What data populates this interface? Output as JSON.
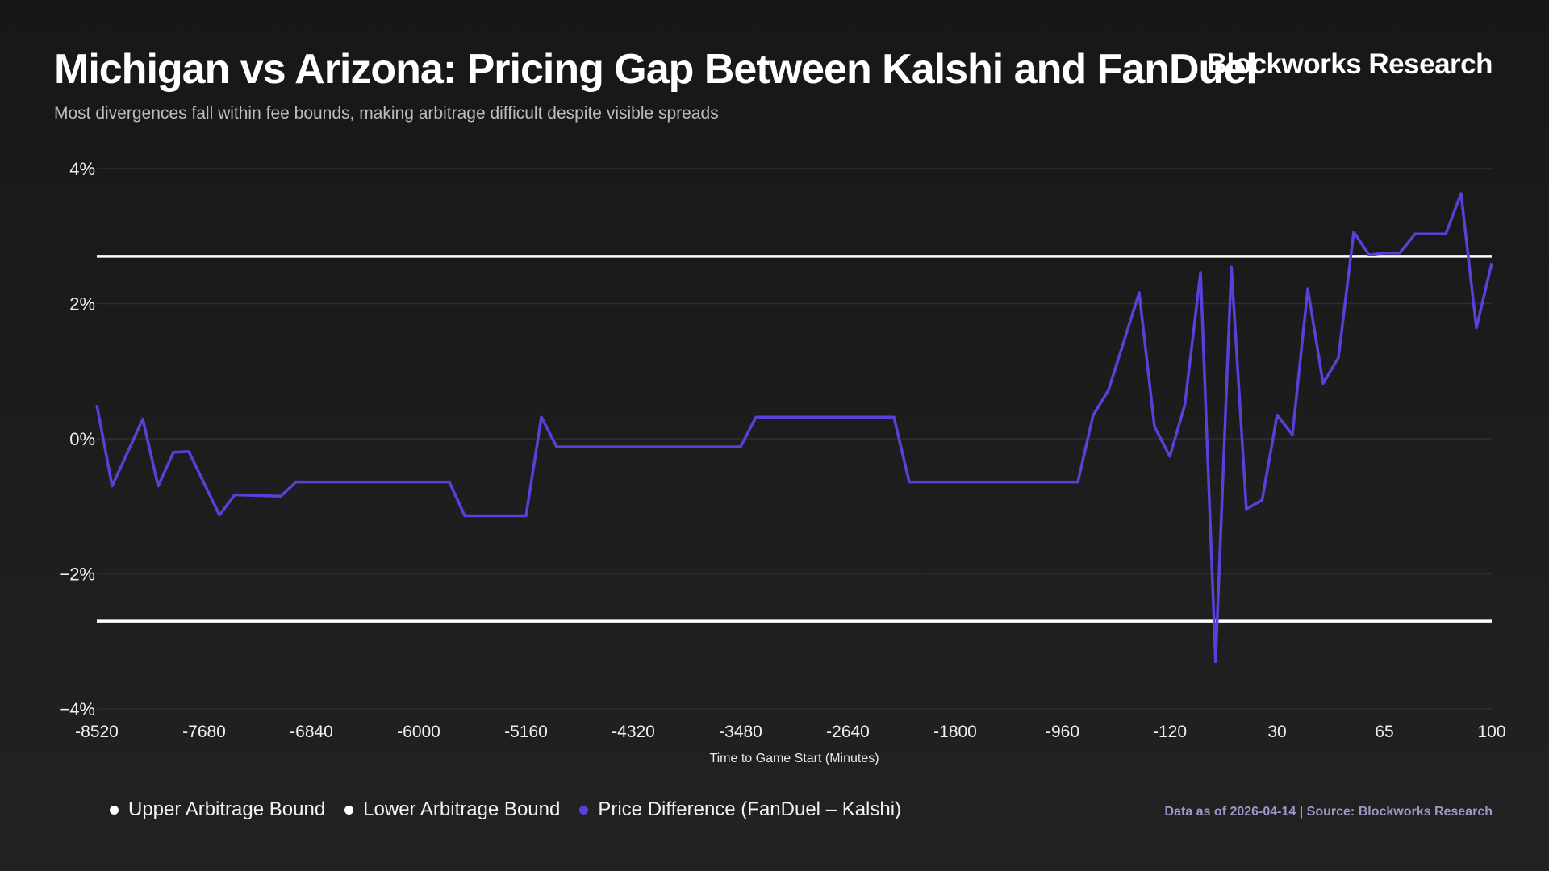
{
  "header": {
    "title": "Michigan vs Arizona: Pricing Gap Between Kalshi and FanDuel",
    "subtitle": "Most divergences fall within fee bounds, making arbitrage difficult despite visible spreads",
    "brand": "Blockworks Research"
  },
  "footer": {
    "source": "Data as of 2026-04-14 | Source: Blockworks Research"
  },
  "chart_data": {
    "type": "line",
    "title": "Michigan vs Arizona: Pricing Gap Between Kalshi and FanDuel",
    "xlabel": "Time to Game Start (Minutes)",
    "ylabel": "",
    "x_ticks": [
      -8520,
      -7680,
      -6840,
      -6000,
      -5160,
      -4320,
      -3480,
      -2640,
      -1800,
      -960,
      -120,
      30,
      65,
      100
    ],
    "x_tick_labels": [
      "-8520",
      "-7680",
      "-6840",
      "-6000",
      "-5160",
      "-4320",
      "-3480",
      "-2640",
      "-1800",
      "-960",
      "-120",
      "30",
      "65",
      "100"
    ],
    "y_ticks": [
      4,
      2,
      0,
      -2,
      -4
    ],
    "y_tick_labels": [
      "4%",
      "2%",
      "0%",
      "−2%",
      "−4%"
    ],
    "ylim": [
      -4,
      4
    ],
    "grid": "horizontal",
    "legend_position": "bottom-left",
    "series": [
      {
        "name": "Upper Arbitrage Bound",
        "color": "#ffffff",
        "x": [
          -8520,
          100
        ],
        "y": [
          2.7,
          2.7
        ]
      },
      {
        "name": "Lower Arbitrage Bound",
        "color": "#ffffff",
        "x": [
          -8520,
          100
        ],
        "y": [
          -2.7,
          -2.7
        ]
      },
      {
        "name": "Price Difference (FanDuel – Kalshi)",
        "color": "#5b3fd8",
        "x": [
          -8520,
          -8400,
          -8160,
          -8040,
          -7920,
          -7800,
          -7560,
          -7440,
          -7080,
          -6960,
          -5760,
          -5640,
          -5160,
          -5040,
          -4920,
          -3480,
          -3360,
          -2280,
          -2160,
          -840,
          -720,
          -600,
          -360,
          -240,
          -120,
          -99,
          -77,
          -56,
          -34,
          -13,
          9,
          30,
          35,
          40,
          45,
          50,
          55,
          60,
          65,
          70,
          75,
          85,
          90,
          95,
          100
        ],
        "y": [
          0.5,
          -0.7,
          0.29,
          -0.7,
          -0.2,
          -0.19,
          -1.13,
          -0.83,
          -0.85,
          -0.64,
          -0.64,
          -1.14,
          -1.14,
          0.32,
          -0.12,
          -0.12,
          0.32,
          0.32,
          -0.64,
          -0.64,
          0.35,
          0.72,
          2.16,
          0.18,
          -0.26,
          0.5,
          2.46,
          -3.3,
          2.54,
          -1.04,
          -0.91,
          0.35,
          0.06,
          2.22,
          0.82,
          1.2,
          3.06,
          2.72,
          2.75,
          2.75,
          3.03,
          3.03,
          3.63,
          1.64,
          2.6
        ]
      }
    ]
  }
}
